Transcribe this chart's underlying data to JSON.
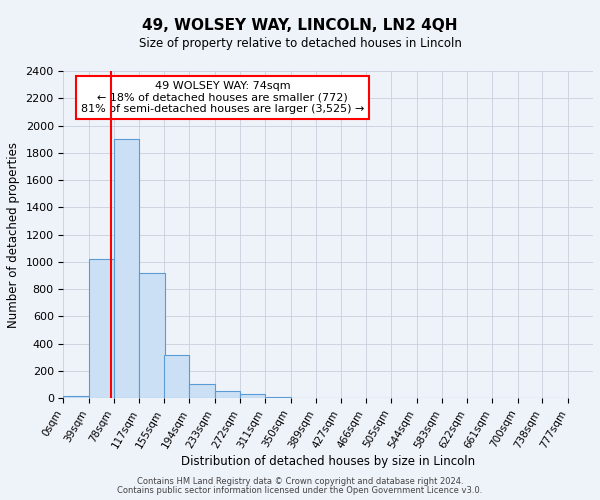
{
  "title": "49, WOLSEY WAY, LINCOLN, LN2 4QH",
  "subtitle": "Size of property relative to detached houses in Lincoln",
  "xlabel": "Distribution of detached houses by size in Lincoln",
  "ylabel": "Number of detached properties",
  "bin_labels": [
    "0sqm",
    "39sqm",
    "78sqm",
    "117sqm",
    "155sqm",
    "194sqm",
    "233sqm",
    "272sqm",
    "311sqm",
    "350sqm",
    "389sqm",
    "427sqm",
    "466sqm",
    "505sqm",
    "544sqm",
    "583sqm",
    "622sqm",
    "661sqm",
    "700sqm",
    "738sqm",
    "777sqm"
  ],
  "bin_edges": [
    0,
    39,
    78,
    117,
    155,
    194,
    233,
    272,
    311,
    350,
    389,
    427,
    466,
    505,
    544,
    583,
    622,
    661,
    700,
    738,
    777
  ],
  "bar_heights": [
    20,
    1020,
    1900,
    920,
    320,
    105,
    50,
    28,
    12,
    0,
    0,
    0,
    0,
    0,
    0,
    0,
    0,
    0,
    0,
    0
  ],
  "bar_color": "#cce0f5",
  "bar_edge_color": "#5b9bd5",
  "grid_color": "#c8d0dc",
  "bg_color": "#eef2f9",
  "red_line_x": 74,
  "annotation_text": "49 WOLSEY WAY: 74sqm\n← 18% of detached houses are smaller (772)\n81% of semi-detached houses are larger (3,525) →",
  "annotation_box_color": "white",
  "annotation_box_edge_color": "red",
  "ylim": [
    0,
    2400
  ],
  "yticks": [
    0,
    200,
    400,
    600,
    800,
    1000,
    1200,
    1400,
    1600,
    1800,
    2000,
    2200,
    2400
  ],
  "footer1": "Contains HM Land Registry data © Crown copyright and database right 2024.",
  "footer2": "Contains public sector information licensed under the Open Government Licence v3.0."
}
